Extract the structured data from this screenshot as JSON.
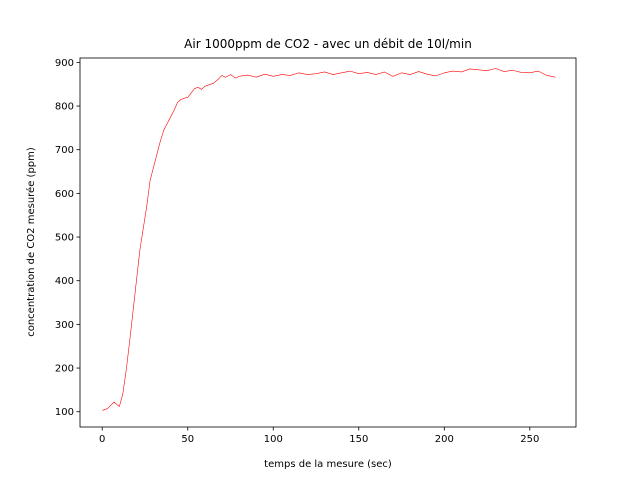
{
  "chart_data": {
    "type": "line",
    "title": "Air 1000ppm de CO2 - avec un débit de 10l/min",
    "xlabel": "temps de la mesure (sec)",
    "ylabel": "concentration de CO2 mesurée (ppm)",
    "xlim": [
      -13,
      277
    ],
    "ylim": [
      65,
      910
    ],
    "xticks": [
      0,
      50,
      100,
      150,
      200,
      250
    ],
    "yticks": [
      100,
      200,
      300,
      400,
      500,
      600,
      700,
      800,
      900
    ],
    "grid": false,
    "series": [
      {
        "color": "#ff0000",
        "x": [
          0,
          3,
          5,
          7,
          9,
          10,
          12,
          14,
          16,
          18,
          20,
          22,
          24,
          26,
          28,
          30,
          32,
          34,
          36,
          38,
          40,
          42,
          44,
          46,
          48,
          50,
          52,
          54,
          56,
          58,
          60,
          62,
          65,
          68,
          70,
          72,
          75,
          78,
          80,
          85,
          90,
          95,
          100,
          105,
          110,
          115,
          120,
          125,
          130,
          135,
          140,
          145,
          150,
          155,
          160,
          165,
          170,
          175,
          180,
          185,
          190,
          195,
          200,
          205,
          210,
          215,
          220,
          225,
          230,
          235,
          240,
          245,
          250,
          255,
          260,
          265
        ],
        "y": [
          103,
          107,
          115,
          122,
          115,
          112,
          140,
          195,
          260,
          330,
          400,
          470,
          520,
          570,
          630,
          660,
          690,
          720,
          745,
          760,
          775,
          790,
          808,
          815,
          818,
          820,
          830,
          840,
          843,
          838,
          845,
          848,
          852,
          862,
          870,
          866,
          872,
          864,
          868,
          871,
          866,
          873,
          868,
          872,
          870,
          876,
          872,
          874,
          878,
          872,
          876,
          880,
          874,
          877,
          872,
          878,
          868,
          876,
          872,
          879,
          873,
          869,
          876,
          880,
          878,
          885,
          883,
          881,
          886,
          879,
          882,
          877,
          876,
          880,
          870,
          866
        ]
      }
    ]
  }
}
